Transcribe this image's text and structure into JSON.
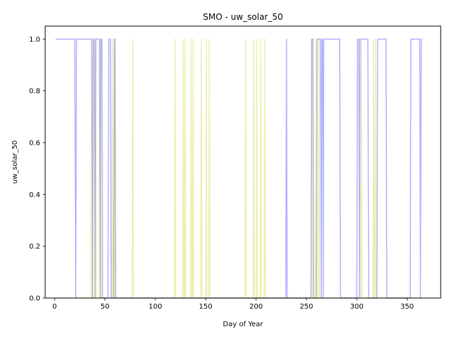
{
  "chart_data": {
    "type": "line",
    "title": "SMO - uw_solar_50",
    "xlabel": "Day of Year",
    "ylabel": "uw_solar_50",
    "xlim": [
      -9.3,
      383.3
    ],
    "ylim": [
      0.0,
      1.05
    ],
    "xticks": [
      0,
      50,
      100,
      150,
      200,
      250,
      300,
      350
    ],
    "yticks": [
      0.0,
      0.2,
      0.4,
      0.6,
      0.8,
      1.0
    ],
    "xtick_labels": [
      "0",
      "50",
      "100",
      "150",
      "200",
      "250",
      "300",
      "350"
    ],
    "ytick_labels": [
      "0.0",
      "0.2",
      "0.4",
      "0.6",
      "0.8",
      "1.0"
    ],
    "grid": false,
    "legend": "none",
    "series": [
      {
        "color": "#0000ff",
        "opacity": 0.3,
        "points": [
          [
            1,
            1
          ],
          [
            20,
            1
          ],
          [
            21,
            0
          ],
          [
            21.8,
            1
          ],
          [
            37,
            1
          ],
          [
            37.8,
            0
          ],
          [
            38.5,
            1
          ],
          [
            39.5,
            1
          ],
          [
            40.2,
            0
          ],
          [
            41,
            1
          ],
          [
            44.5,
            1
          ],
          [
            45.2,
            0
          ],
          [
            46,
            1
          ],
          [
            47,
            1
          ],
          [
            47.7,
            0
          ],
          [
            53,
            0
          ],
          [
            53.8,
            1
          ],
          [
            55.5,
            1
          ],
          [
            56.2,
            0
          ],
          [
            58.7,
            0
          ],
          [
            59.4,
            1
          ],
          [
            60,
            1
          ],
          [
            60.7,
            0
          ],
          [
            229.5,
            0
          ],
          [
            230.2,
            1
          ],
          [
            230.9,
            0
          ],
          [
            254.5,
            0
          ],
          [
            255.2,
            1
          ],
          [
            256.5,
            1
          ],
          [
            257.2,
            0
          ],
          [
            260,
            0
          ],
          [
            260.7,
            1
          ],
          [
            264,
            1
          ],
          [
            264.7,
            0
          ],
          [
            265.3,
            1
          ],
          [
            266,
            1
          ],
          [
            266.7,
            0
          ],
          [
            267.2,
            1
          ],
          [
            283,
            1
          ],
          [
            283.8,
            0
          ],
          [
            300,
            0
          ],
          [
            300.7,
            1
          ],
          [
            302,
            1
          ],
          [
            302.7,
            0
          ],
          [
            303.3,
            1
          ],
          [
            311,
            1
          ],
          [
            311.8,
            0
          ],
          [
            320,
            0
          ],
          [
            320.7,
            1
          ],
          [
            329,
            1
          ],
          [
            329.8,
            0
          ],
          [
            353,
            0
          ],
          [
            353.7,
            1
          ],
          [
            362.5,
            1
          ],
          [
            363.2,
            0
          ],
          [
            364,
            1
          ],
          [
            365,
            1
          ]
        ]
      },
      {
        "color": "#c8c800",
        "opacity": 0.3,
        "points": [
          [
            1,
            0
          ],
          [
            36,
            0
          ],
          [
            36.6,
            1
          ],
          [
            37.2,
            0
          ],
          [
            40,
            0
          ],
          [
            40.6,
            1
          ],
          [
            41.2,
            0
          ],
          [
            45,
            0
          ],
          [
            45.6,
            1
          ],
          [
            46.2,
            0
          ],
          [
            57,
            0
          ],
          [
            57.6,
            1
          ],
          [
            58.2,
            0
          ],
          [
            59,
            0
          ],
          [
            59.6,
            1
          ],
          [
            60.2,
            0
          ],
          [
            77,
            0
          ],
          [
            77.6,
            1
          ],
          [
            78.2,
            0
          ],
          [
            119,
            0
          ],
          [
            119.6,
            1
          ],
          [
            120.2,
            0
          ],
          [
            127,
            0
          ],
          [
            127.6,
            1
          ],
          [
            128.2,
            0
          ],
          [
            129,
            0
          ],
          [
            129.6,
            1
          ],
          [
            130.2,
            0
          ],
          [
            135,
            0
          ],
          [
            135.6,
            1
          ],
          [
            136.2,
            0
          ],
          [
            137,
            0
          ],
          [
            137.6,
            1
          ],
          [
            138.2,
            0
          ],
          [
            145,
            0
          ],
          [
            145.6,
            1
          ],
          [
            146.2,
            0
          ],
          [
            150,
            0
          ],
          [
            150.6,
            1
          ],
          [
            151.2,
            0
          ],
          [
            153,
            0
          ],
          [
            153.6,
            1
          ],
          [
            154.2,
            0
          ],
          [
            189,
            0
          ],
          [
            189.6,
            1
          ],
          [
            190.2,
            0
          ],
          [
            197,
            0
          ],
          [
            197.6,
            1
          ],
          [
            198.2,
            0
          ],
          [
            200,
            0
          ],
          [
            200.6,
            1
          ],
          [
            201.2,
            0
          ],
          [
            204,
            0
          ],
          [
            204.6,
            1
          ],
          [
            205.2,
            0
          ],
          [
            208,
            0
          ],
          [
            208.6,
            1
          ],
          [
            209.2,
            0
          ],
          [
            255,
            0
          ],
          [
            255.6,
            1
          ],
          [
            256.2,
            0
          ],
          [
            259,
            0
          ],
          [
            259.6,
            1
          ],
          [
            260.2,
            0
          ],
          [
            262,
            0
          ],
          [
            262.6,
            1
          ],
          [
            263.2,
            0
          ],
          [
            304,
            0
          ],
          [
            304.6,
            1
          ],
          [
            305.2,
            0
          ],
          [
            316,
            0
          ],
          [
            316.6,
            1
          ],
          [
            317.2,
            0
          ],
          [
            318,
            0
          ],
          [
            318.6,
            1
          ],
          [
            319.2,
            0
          ],
          [
            365,
            0
          ]
        ]
      }
    ]
  }
}
